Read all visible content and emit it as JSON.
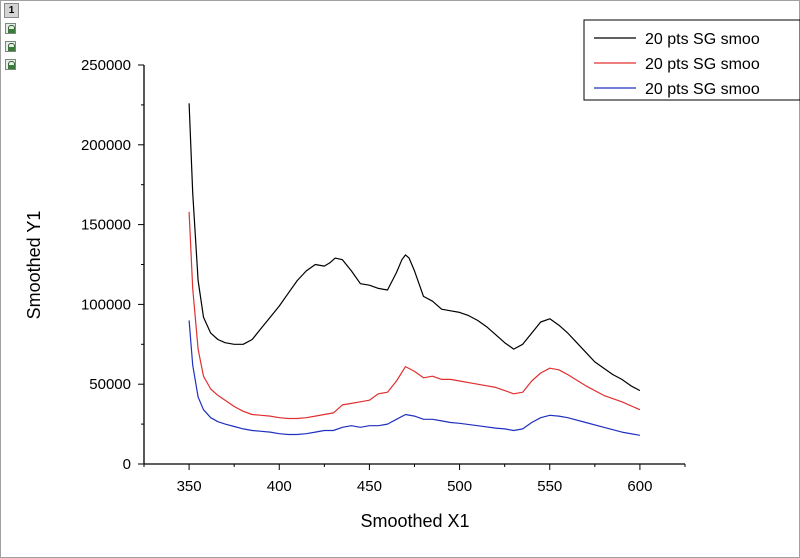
{
  "layer_tab": {
    "label": "1"
  },
  "lock_icons": [
    "lock-icon",
    "lock-icon",
    "lock-icon"
  ],
  "chart_data": {
    "type": "line",
    "xlabel": "Smoothed X1",
    "ylabel": "Smoothed Y1",
    "xlim": [
      325,
      625
    ],
    "ylim": [
      0,
      250000
    ],
    "xticks": [
      350,
      400,
      450,
      500,
      550,
      600
    ],
    "yticks": [
      0,
      50000,
      100000,
      150000,
      200000,
      250000
    ],
    "grid": false,
    "legend_position": "top-right",
    "series": [
      {
        "name": "20 pts SG smoo",
        "color": "#000000",
        "x": [
          350,
          352,
          355,
          358,
          362,
          366,
          370,
          375,
          380,
          385,
          390,
          395,
          400,
          405,
          410,
          415,
          420,
          425,
          428,
          431,
          435,
          440,
          445,
          450,
          455,
          460,
          465,
          468,
          470,
          472,
          475,
          480,
          485,
          490,
          495,
          500,
          505,
          510,
          515,
          520,
          525,
          530,
          535,
          540,
          545,
          550,
          555,
          560,
          565,
          570,
          575,
          580,
          585,
          590,
          595,
          600
        ],
        "y": [
          226000,
          170000,
          115000,
          92000,
          82000,
          78000,
          76000,
          75000,
          75000,
          78000,
          85000,
          92000,
          99000,
          107000,
          115000,
          121000,
          125000,
          124000,
          126000,
          129000,
          128000,
          121000,
          113000,
          112000,
          110000,
          109000,
          120000,
          128000,
          131000,
          129000,
          121000,
          105000,
          102000,
          97000,
          96000,
          95000,
          93000,
          90000,
          86000,
          81000,
          76000,
          72000,
          75000,
          82000,
          89000,
          91000,
          87000,
          82000,
          76000,
          70000,
          64000,
          60000,
          56000,
          53000,
          49000,
          46000
        ]
      },
      {
        "name": "20 pts SG smoo",
        "color": "#e03030",
        "x": [
          350,
          352,
          355,
          358,
          362,
          366,
          370,
          375,
          380,
          385,
          390,
          395,
          400,
          405,
          410,
          415,
          420,
          425,
          430,
          435,
          440,
          445,
          450,
          455,
          460,
          465,
          470,
          475,
          480,
          485,
          490,
          495,
          500,
          510,
          520,
          525,
          530,
          535,
          540,
          545,
          550,
          555,
          560,
          570,
          580,
          590,
          600
        ],
        "y": [
          158000,
          110000,
          72000,
          55000,
          47000,
          43000,
          40000,
          36000,
          33000,
          31000,
          30500,
          30000,
          29000,
          28500,
          28500,
          29000,
          30000,
          31000,
          32000,
          37000,
          38000,
          39000,
          40000,
          44000,
          45000,
          52000,
          61000,
          58000,
          54000,
          55000,
          53000,
          53000,
          52000,
          50000,
          48000,
          46000,
          44000,
          45000,
          52000,
          57000,
          60000,
          59000,
          56000,
          49000,
          43000,
          39000,
          34000
        ]
      },
      {
        "name": "20 pts SG smoo",
        "color": "#2030c0",
        "x": [
          350,
          352,
          355,
          358,
          362,
          366,
          370,
          375,
          380,
          385,
          390,
          395,
          400,
          405,
          410,
          415,
          420,
          425,
          430,
          435,
          440,
          445,
          450,
          455,
          460,
          465,
          470,
          475,
          480,
          485,
          490,
          495,
          500,
          510,
          520,
          525,
          530,
          535,
          540,
          545,
          550,
          555,
          560,
          570,
          580,
          590,
          600
        ],
        "y": [
          90000,
          62000,
          42000,
          34000,
          29000,
          26500,
          25000,
          23500,
          22000,
          21000,
          20500,
          20000,
          19000,
          18500,
          18500,
          19000,
          20000,
          21000,
          21000,
          23000,
          24000,
          23000,
          24000,
          24000,
          25000,
          28000,
          31000,
          30000,
          28000,
          28000,
          27000,
          26000,
          25500,
          24000,
          22500,
          22000,
          21000,
          22000,
          26000,
          29000,
          30500,
          30000,
          29000,
          26000,
          23000,
          20000,
          18000
        ]
      }
    ]
  }
}
